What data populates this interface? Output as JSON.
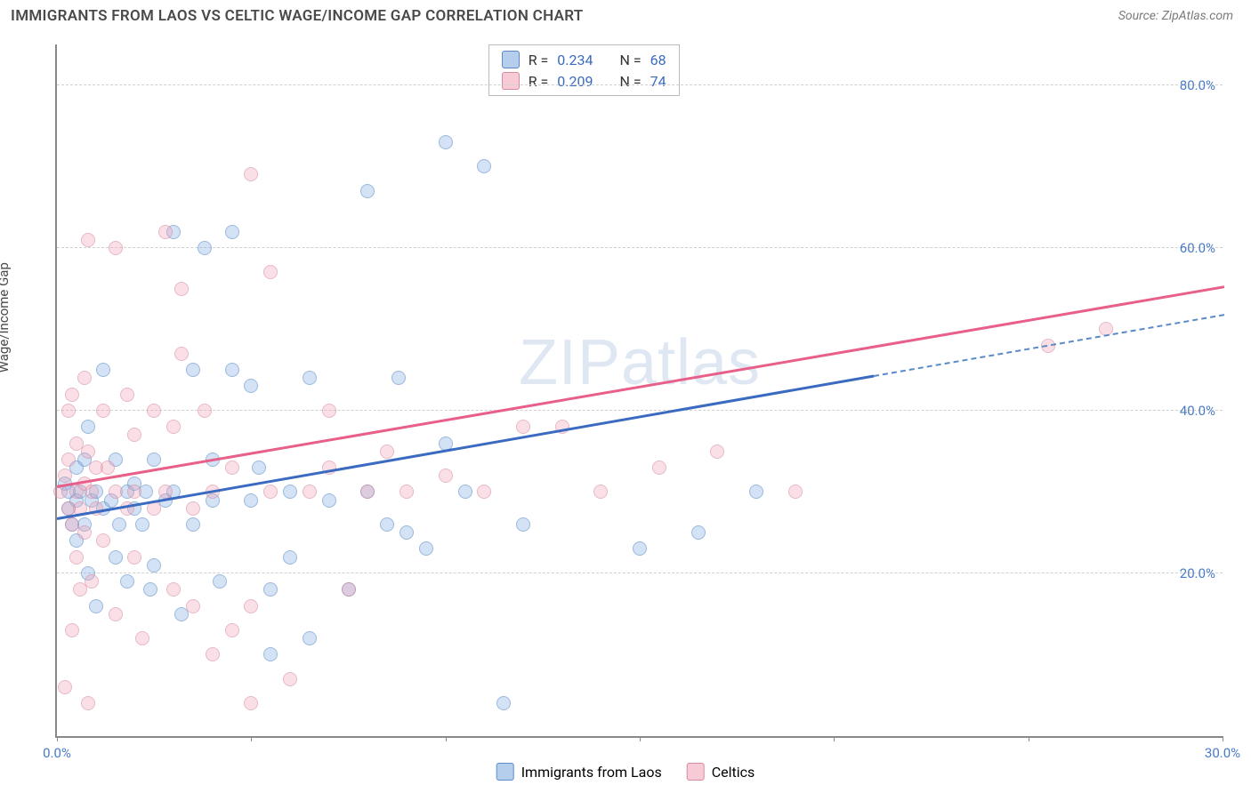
{
  "header": {
    "title": "IMMIGRANTS FROM LAOS VS CELTIC WAGE/INCOME GAP CORRELATION CHART",
    "source": "Source: ZipAtlas.com"
  },
  "chart": {
    "type": "scatter",
    "ylabel": "Wage/Income Gap",
    "watermark": "ZIPatlas",
    "xlim": [
      0,
      30
    ],
    "ylim": [
      0,
      85
    ],
    "yticks": [
      {
        "value": 20,
        "label": "20.0%"
      },
      {
        "value": 40,
        "label": "40.0%"
      },
      {
        "value": 60,
        "label": "60.0%"
      },
      {
        "value": 80,
        "label": "80.0%"
      }
    ],
    "xticks": [
      {
        "value": 0,
        "label": "0.0%"
      },
      {
        "value": 5,
        "label": ""
      },
      {
        "value": 10,
        "label": ""
      },
      {
        "value": 15,
        "label": ""
      },
      {
        "value": 20,
        "label": ""
      },
      {
        "value": 25,
        "label": ""
      },
      {
        "value": 30,
        "label": "30.0%"
      }
    ],
    "grid_color": "#d0d0d0",
    "background_color": "#ffffff",
    "series": [
      {
        "name": "Immigrants from Laos",
        "color_fill": "rgba(120,165,220,0.55)",
        "color_stroke": "#5a8bc8",
        "trend_color": "#3a6bc0",
        "R": "0.234",
        "N": "68",
        "trend": {
          "x1": 0,
          "y1": 27,
          "x2_solid": 21,
          "y2_solid": 44.5,
          "x2_dashed": 30,
          "y2_dashed": 52
        },
        "points": [
          [
            0.2,
            31
          ],
          [
            0.3,
            30
          ],
          [
            0.3,
            28
          ],
          [
            0.4,
            26
          ],
          [
            0.5,
            29
          ],
          [
            0.5,
            33
          ],
          [
            0.5,
            24
          ],
          [
            0.6,
            30
          ],
          [
            0.7,
            26
          ],
          [
            0.7,
            34
          ],
          [
            0.8,
            38
          ],
          [
            0.8,
            20
          ],
          [
            0.9,
            29
          ],
          [
            1.0,
            30
          ],
          [
            1.0,
            16
          ],
          [
            1.2,
            45
          ],
          [
            1.2,
            28
          ],
          [
            1.4,
            29
          ],
          [
            1.5,
            22
          ],
          [
            1.5,
            34
          ],
          [
            1.6,
            26
          ],
          [
            1.8,
            19
          ],
          [
            1.8,
            30
          ],
          [
            2.0,
            31
          ],
          [
            2.0,
            28
          ],
          [
            2.2,
            26
          ],
          [
            2.3,
            30
          ],
          [
            2.4,
            18
          ],
          [
            2.5,
            34
          ],
          [
            2.5,
            21
          ],
          [
            2.8,
            29
          ],
          [
            3.0,
            62
          ],
          [
            3.0,
            30
          ],
          [
            3.2,
            15
          ],
          [
            3.5,
            45
          ],
          [
            3.5,
            26
          ],
          [
            3.8,
            60
          ],
          [
            4.0,
            34
          ],
          [
            4.0,
            29
          ],
          [
            4.2,
            19
          ],
          [
            4.5,
            62
          ],
          [
            4.5,
            45
          ],
          [
            5.0,
            43
          ],
          [
            5.0,
            29
          ],
          [
            5.2,
            33
          ],
          [
            5.5,
            10
          ],
          [
            5.5,
            18
          ],
          [
            6.0,
            30
          ],
          [
            6.0,
            22
          ],
          [
            6.5,
            44
          ],
          [
            6.5,
            12
          ],
          [
            7.0,
            29
          ],
          [
            7.5,
            18
          ],
          [
            8.0,
            67
          ],
          [
            8.0,
            30
          ],
          [
            8.5,
            26
          ],
          [
            8.8,
            44
          ],
          [
            9.0,
            25
          ],
          [
            9.5,
            23
          ],
          [
            10.0,
            73
          ],
          [
            10.0,
            36
          ],
          [
            10.5,
            30
          ],
          [
            11.0,
            70
          ],
          [
            11.5,
            4
          ],
          [
            12.0,
            26
          ],
          [
            15.0,
            23
          ],
          [
            16.5,
            25
          ],
          [
            18.0,
            30
          ]
        ]
      },
      {
        "name": "Celtics",
        "color_fill": "rgba(240,160,180,0.55)",
        "color_stroke": "#d88aa0",
        "trend_color": "#e85f8a",
        "R": "0.209",
        "N": "74",
        "trend": {
          "x1": 0,
          "y1": 31,
          "x2_solid": 30,
          "y2_solid": 55.5
        },
        "points": [
          [
            0.1,
            30
          ],
          [
            0.2,
            32
          ],
          [
            0.2,
            6
          ],
          [
            0.3,
            28
          ],
          [
            0.3,
            40
          ],
          [
            0.3,
            34
          ],
          [
            0.4,
            26
          ],
          [
            0.4,
            42
          ],
          [
            0.4,
            13
          ],
          [
            0.5,
            30
          ],
          [
            0.5,
            22
          ],
          [
            0.5,
            36
          ],
          [
            0.6,
            28
          ],
          [
            0.6,
            18
          ],
          [
            0.7,
            31
          ],
          [
            0.7,
            25
          ],
          [
            0.7,
            44
          ],
          [
            0.8,
            35
          ],
          [
            0.8,
            61
          ],
          [
            0.8,
            4
          ],
          [
            0.9,
            30
          ],
          [
            0.9,
            19
          ],
          [
            1.0,
            33
          ],
          [
            1.0,
            28
          ],
          [
            1.2,
            40
          ],
          [
            1.2,
            24
          ],
          [
            1.3,
            33
          ],
          [
            1.5,
            30
          ],
          [
            1.5,
            60
          ],
          [
            1.5,
            15
          ],
          [
            1.8,
            42
          ],
          [
            1.8,
            28
          ],
          [
            2.0,
            37
          ],
          [
            2.0,
            30
          ],
          [
            2.0,
            22
          ],
          [
            2.2,
            12
          ],
          [
            2.5,
            40
          ],
          [
            2.5,
            28
          ],
          [
            2.8,
            62
          ],
          [
            2.8,
            30
          ],
          [
            3.0,
            38
          ],
          [
            3.0,
            18
          ],
          [
            3.2,
            55
          ],
          [
            3.2,
            47
          ],
          [
            3.5,
            28
          ],
          [
            3.5,
            16
          ],
          [
            3.8,
            40
          ],
          [
            4.0,
            30
          ],
          [
            4.0,
            10
          ],
          [
            4.5,
            13
          ],
          [
            4.5,
            33
          ],
          [
            5.0,
            69
          ],
          [
            5.0,
            16
          ],
          [
            5.0,
            4
          ],
          [
            5.5,
            30
          ],
          [
            5.5,
            57
          ],
          [
            6.0,
            7
          ],
          [
            6.5,
            30
          ],
          [
            7.0,
            40
          ],
          [
            7.0,
            33
          ],
          [
            7.5,
            18
          ],
          [
            8.0,
            30
          ],
          [
            8.5,
            35
          ],
          [
            9.0,
            30
          ],
          [
            10.0,
            32
          ],
          [
            11.0,
            30
          ],
          [
            12.0,
            38
          ],
          [
            13.0,
            38
          ],
          [
            14.0,
            30
          ],
          [
            15.5,
            33
          ],
          [
            17.0,
            35
          ],
          [
            19.0,
            30
          ],
          [
            25.5,
            48
          ],
          [
            27.0,
            50
          ]
        ]
      }
    ],
    "stats_labels": {
      "R": "R =",
      "N": "N ="
    },
    "legend": {
      "items": [
        {
          "label": "Immigrants from Laos",
          "swatch": "blue"
        },
        {
          "label": "Celtics",
          "swatch": "pink"
        }
      ]
    }
  }
}
